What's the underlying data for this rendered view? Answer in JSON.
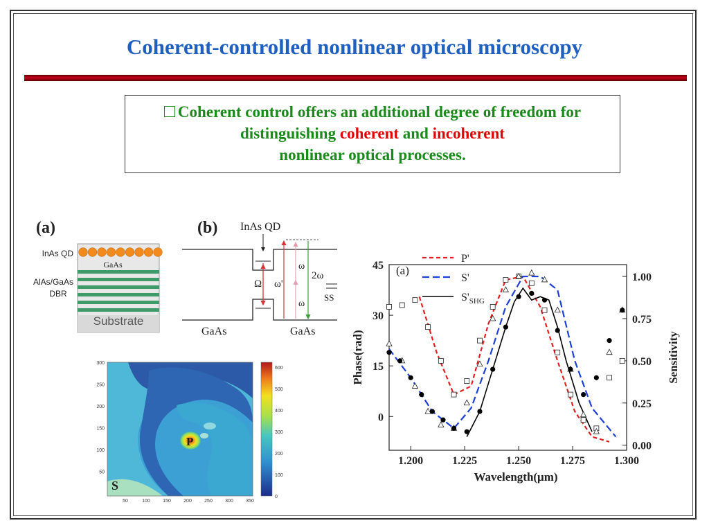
{
  "slide": {
    "title": "Coherent-controlled nonlinear optical microscopy",
    "bullet": {
      "part1": "Coherent control offers an additional degree of freedom for distinguishing",
      "coherent": "coherent",
      "and": "and",
      "incoherent": "incoherent",
      "part2": "nonlinear optical processes."
    }
  },
  "panel_a": {
    "label": "(a)",
    "qd_label": "InAs QD",
    "gaas_label": "GaAs",
    "dbr_label_1": "AlAs/GaAs",
    "dbr_label_2": "DBR",
    "substrate_label": "Substrate",
    "colors": {
      "qd": "#f28a1c",
      "dbr": "#3f9a6a",
      "substrate": "#d9d9d9"
    }
  },
  "panel_b": {
    "label": "(b)",
    "qd_label": "InAs QD",
    "omega_big": "Ω",
    "omega_prime": "ω'",
    "omega_1": "ω",
    "omega_2": "ω",
    "two_omega": "2ω",
    "ss": "SS",
    "gaas_left": "GaAs",
    "gaas_right": "GaAs"
  },
  "map": {
    "x_ticks": [
      "50",
      "100",
      "150",
      "200",
      "250",
      "300",
      "350"
    ],
    "y_ticks": [
      "300",
      "250",
      "200",
      "150",
      "100",
      "50"
    ],
    "colorbar_ticks": [
      "600",
      "500",
      "400",
      "300",
      "200",
      "100",
      "0"
    ],
    "label_p": "P",
    "label_s": "S"
  },
  "chart_data": {
    "type": "scatter",
    "panel_label": "(a)",
    "xlabel": "Wavelength(μm)",
    "ylabel_left": "Phase(rad)",
    "ylabel_right": "Sensitivity",
    "xlim": [
      1.19,
      1.3
    ],
    "ylim_left": [
      -10,
      45
    ],
    "ylim_right": [
      -0.03,
      1.07
    ],
    "x_ticks": [
      "1.200",
      "1.225",
      "1.250",
      "1.275",
      "1.300"
    ],
    "y_ticks_left": [
      "0",
      "15",
      "30",
      "45"
    ],
    "y_ticks_right": [
      "0.00",
      "0.25",
      "0.50",
      "0.75",
      "1.00"
    ],
    "legend": {
      "p": "P'",
      "s": "S'",
      "shg": "S'",
      "shg_sub": "SHG",
      "placement": "top-left"
    },
    "series": [
      {
        "name": "P'",
        "kind": "line-dashed",
        "color": "#e02020",
        "axis": "right",
        "x": [
          1.204,
          1.212,
          1.22,
          1.228,
          1.236,
          1.244,
          1.252,
          1.26,
          1.268,
          1.276,
          1.284,
          1.292
        ],
        "y": [
          0.88,
          0.55,
          0.3,
          0.35,
          0.72,
          0.98,
          1.0,
          0.82,
          0.5,
          0.2,
          0.05,
          0.02
        ]
      },
      {
        "name": "S'",
        "kind": "line-dashed",
        "color": "#1c3fd8",
        "axis": "right",
        "x": [
          1.19,
          1.2,
          1.21,
          1.22,
          1.228,
          1.236,
          1.244,
          1.252,
          1.26,
          1.268,
          1.276,
          1.284,
          1.295
        ],
        "y": [
          0.57,
          0.4,
          0.2,
          0.1,
          0.22,
          0.5,
          0.82,
          1.0,
          1.0,
          0.92,
          0.5,
          0.22,
          0.05
        ]
      },
      {
        "name": "S'SHG",
        "kind": "line",
        "color": "#000000",
        "axis": "right",
        "x": [
          1.226,
          1.232,
          1.238,
          1.244,
          1.248,
          1.252,
          1.256,
          1.26,
          1.264,
          1.268,
          1.272,
          1.278,
          1.284
        ],
        "y": [
          0.05,
          0.2,
          0.45,
          0.7,
          0.85,
          0.93,
          0.86,
          0.88,
          0.86,
          0.7,
          0.5,
          0.25,
          0.08
        ]
      },
      {
        "name": "open-squares",
        "kind": "marker-square",
        "axis": "right",
        "x": [
          1.19,
          1.196,
          1.202,
          1.208,
          1.214,
          1.22,
          1.226,
          1.232,
          1.238,
          1.244,
          1.25,
          1.256,
          1.262,
          1.268,
          1.274,
          1.28,
          1.286,
          1.292,
          1.298
        ],
        "y": [
          0.82,
          0.83,
          0.86,
          0.7,
          0.5,
          0.3,
          0.38,
          0.62,
          0.82,
          0.98,
          1.0,
          0.96,
          0.8,
          0.55,
          0.3,
          0.15,
          0.1,
          0.4,
          0.5
        ]
      },
      {
        "name": "open-triangles",
        "kind": "marker-triangle",
        "axis": "right",
        "x": [
          1.19,
          1.196,
          1.202,
          1.208,
          1.214,
          1.22,
          1.226,
          1.232,
          1.238,
          1.244,
          1.25,
          1.256,
          1.262,
          1.268,
          1.274,
          1.28,
          1.286,
          1.292,
          1.298
        ],
        "y": [
          0.6,
          0.5,
          0.35,
          0.2,
          0.12,
          0.1,
          0.25,
          0.48,
          0.75,
          0.92,
          1.0,
          1.02,
          0.98,
          0.8,
          0.45,
          0.18,
          0.08,
          0.55,
          0.8
        ]
      },
      {
        "name": "filled-circles",
        "kind": "marker-circle",
        "axis": "right",
        "x": [
          1.19,
          1.195,
          1.2,
          1.205,
          1.21,
          1.215,
          1.22,
          1.226,
          1.232,
          1.238,
          1.244,
          1.25,
          1.256,
          1.262,
          1.268,
          1.274,
          1.28,
          1.286,
          1.292,
          1.298
        ],
        "y": [
          0.55,
          0.5,
          0.4,
          0.3,
          0.2,
          0.15,
          0.1,
          0.08,
          0.2,
          0.45,
          0.7,
          0.88,
          0.9,
          0.86,
          0.68,
          0.45,
          0.3,
          0.4,
          0.62,
          0.8
        ]
      }
    ]
  }
}
